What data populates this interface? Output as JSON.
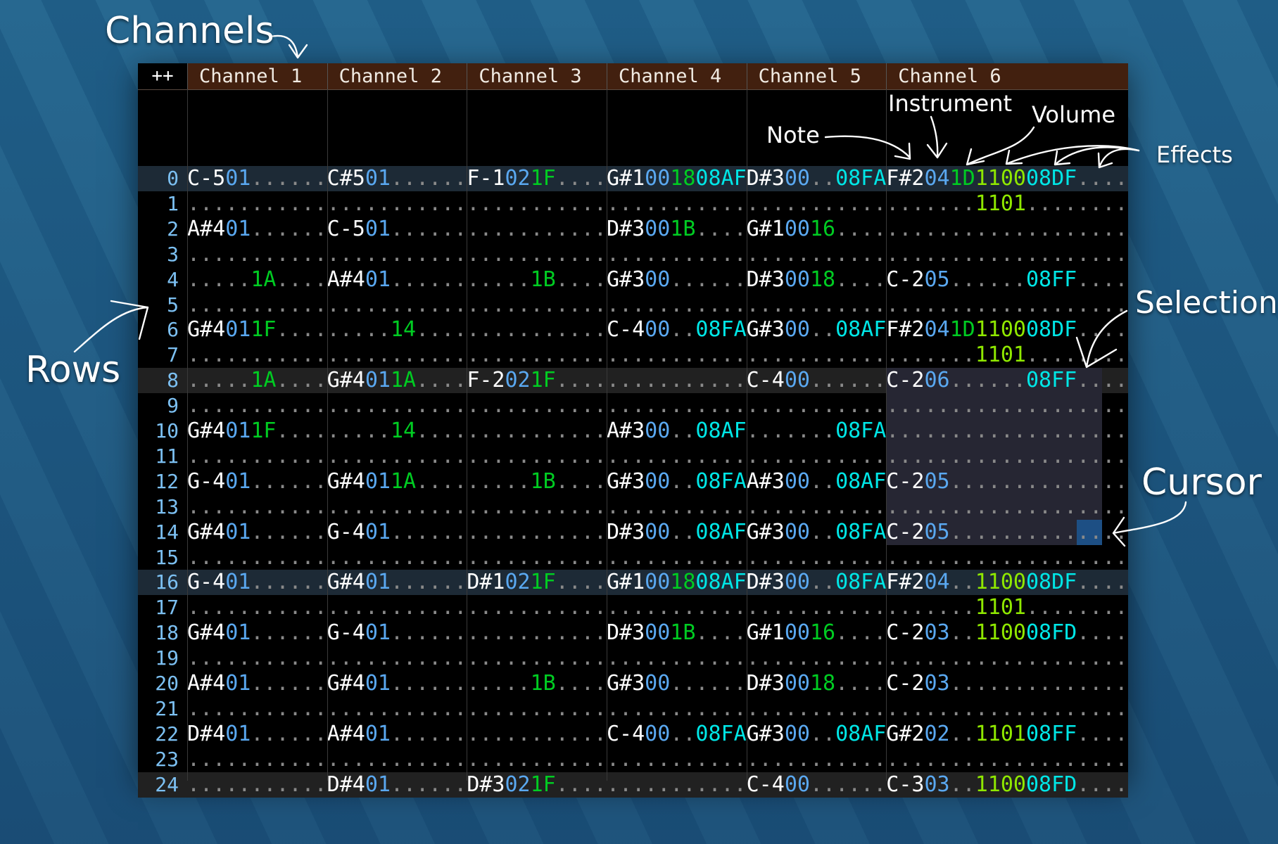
{
  "header": {
    "corner_label": "++",
    "channels": [
      "Channel 1",
      "Channel 2",
      "Channel 3",
      "Channel 4",
      "Channel 5",
      "Channel 6"
    ]
  },
  "channel_effect_columns": [
    1,
    1,
    1,
    1,
    1,
    3
  ],
  "colors": {
    "note": "#ffffff",
    "instrument": "#5aa8f0",
    "volume": "#00cc22",
    "effect_08": "#00e6e6",
    "effect_11": "#8fe800",
    "row_number": "#7cc0f2",
    "header_bg": "#42200f",
    "selection": "#262633",
    "cursor": "#1d4f84"
  },
  "annotations": {
    "channels": "Channels",
    "rows": "Rows",
    "note": "Note",
    "instrument": "Instrument",
    "volume": "Volume",
    "effects": "Effects",
    "selection": "Selection",
    "cursor": "Cursor"
  },
  "selection": {
    "channel": 6,
    "row_start": 8,
    "row_end": 14,
    "end_field": "fx3",
    "end_digit": 1
  },
  "cursor": {
    "channel": 6,
    "row": 14,
    "field": "fx3",
    "digits": [
      0,
      1
    ]
  },
  "rows": [
    {
      "n": "0",
      "cells": [
        [
          "C-5",
          "01",
          "",
          ""
        ],
        [
          "C#5",
          "01",
          "",
          ""
        ],
        [
          "F-1",
          "02",
          "1F",
          ""
        ],
        [
          "G#1",
          "00",
          "18",
          "08AF"
        ],
        [
          "D#3",
          "00",
          "",
          "08FA"
        ],
        [
          "F#2",
          "04",
          "1D",
          "1100",
          "08DF",
          ""
        ]
      ]
    },
    {
      "n": "1",
      "cells": [
        [
          "",
          "",
          "",
          ""
        ],
        [
          "",
          "",
          "",
          ""
        ],
        [
          "",
          "",
          "",
          ""
        ],
        [
          "",
          "",
          "",
          ""
        ],
        [
          "",
          "",
          "",
          ""
        ],
        [
          "",
          "",
          "",
          "1101",
          "",
          ""
        ]
      ]
    },
    {
      "n": "2",
      "cells": [
        [
          "A#4",
          "01",
          "",
          ""
        ],
        [
          "C-5",
          "01",
          "",
          ""
        ],
        [
          "",
          "",
          "",
          ""
        ],
        [
          "D#3",
          "00",
          "1B",
          ""
        ],
        [
          "G#1",
          "00",
          "16",
          ""
        ],
        [
          "",
          "",
          "",
          "",
          "",
          ""
        ]
      ]
    },
    {
      "n": "3",
      "cells": [
        [
          "",
          "",
          "",
          ""
        ],
        [
          "",
          "",
          "",
          ""
        ],
        [
          "",
          "",
          "",
          ""
        ],
        [
          "",
          "",
          "",
          ""
        ],
        [
          "",
          "",
          "",
          ""
        ],
        [
          "",
          "",
          "",
          "",
          "",
          ""
        ]
      ]
    },
    {
      "n": "4",
      "cells": [
        [
          "",
          "",
          "1A",
          ""
        ],
        [
          "A#4",
          "01",
          "",
          ""
        ],
        [
          "",
          "",
          "1B",
          ""
        ],
        [
          "G#3",
          "00",
          "",
          ""
        ],
        [
          "D#3",
          "00",
          "18",
          ""
        ],
        [
          "C-2",
          "05",
          "",
          "",
          "08FF",
          ""
        ]
      ]
    },
    {
      "n": "5",
      "cells": [
        [
          "",
          "",
          "",
          ""
        ],
        [
          "",
          "",
          "",
          ""
        ],
        [
          "",
          "",
          "",
          ""
        ],
        [
          "",
          "",
          "",
          ""
        ],
        [
          "",
          "",
          "",
          ""
        ],
        [
          "",
          "",
          "",
          "",
          "",
          ""
        ]
      ]
    },
    {
      "n": "6",
      "cells": [
        [
          "G#4",
          "01",
          "1F",
          ""
        ],
        [
          "",
          "",
          "14",
          ""
        ],
        [
          "",
          "",
          "",
          ""
        ],
        [
          "C-4",
          "00",
          "",
          "08FA"
        ],
        [
          "G#3",
          "00",
          "",
          "08AF"
        ],
        [
          "F#2",
          "04",
          "1D",
          "1100",
          "08DF",
          ""
        ]
      ]
    },
    {
      "n": "7",
      "cells": [
        [
          "",
          "",
          "",
          ""
        ],
        [
          "",
          "",
          "",
          ""
        ],
        [
          "",
          "",
          "",
          ""
        ],
        [
          "",
          "",
          "",
          ""
        ],
        [
          "",
          "",
          "",
          ""
        ],
        [
          "",
          "",
          "",
          "1101",
          "",
          ""
        ]
      ]
    },
    {
      "n": "8",
      "cells": [
        [
          "",
          "",
          "1A",
          ""
        ],
        [
          "G#4",
          "01",
          "1A",
          ""
        ],
        [
          "F-2",
          "02",
          "1F",
          ""
        ],
        [
          "",
          "",
          "",
          ""
        ],
        [
          "C-4",
          "00",
          "",
          ""
        ],
        [
          "C-2",
          "06",
          "",
          "",
          "08FF",
          ""
        ]
      ]
    },
    {
      "n": "9",
      "cells": [
        [
          "",
          "",
          "",
          ""
        ],
        [
          "",
          "",
          "",
          ""
        ],
        [
          "",
          "",
          "",
          ""
        ],
        [
          "",
          "",
          "",
          ""
        ],
        [
          "",
          "",
          "",
          ""
        ],
        [
          "",
          "",
          "",
          "",
          "",
          ""
        ]
      ]
    },
    {
      "n": "10",
      "cells": [
        [
          "G#4",
          "01",
          "1F",
          ""
        ],
        [
          "",
          "",
          "14",
          ""
        ],
        [
          "",
          "",
          "",
          ""
        ],
        [
          "A#3",
          "00",
          "",
          "08AF"
        ],
        [
          "",
          "",
          "",
          "08FA"
        ],
        [
          "",
          "",
          "",
          "",
          "",
          ""
        ]
      ]
    },
    {
      "n": "11",
      "cells": [
        [
          "",
          "",
          "",
          ""
        ],
        [
          "",
          "",
          "",
          ""
        ],
        [
          "",
          "",
          "",
          ""
        ],
        [
          "",
          "",
          "",
          ""
        ],
        [
          "",
          "",
          "",
          ""
        ],
        [
          "",
          "",
          "",
          "",
          "",
          ""
        ]
      ]
    },
    {
      "n": "12",
      "cells": [
        [
          "G-4",
          "01",
          "",
          ""
        ],
        [
          "G#4",
          "01",
          "1A",
          ""
        ],
        [
          "",
          "",
          "1B",
          ""
        ],
        [
          "G#3",
          "00",
          "",
          "08FA"
        ],
        [
          "A#3",
          "00",
          "",
          "08AF"
        ],
        [
          "C-2",
          "05",
          "",
          "",
          "",
          ""
        ]
      ]
    },
    {
      "n": "13",
      "cells": [
        [
          "",
          "",
          "",
          ""
        ],
        [
          "",
          "",
          "",
          ""
        ],
        [
          "",
          "",
          "",
          ""
        ],
        [
          "",
          "",
          "",
          ""
        ],
        [
          "",
          "",
          "",
          ""
        ],
        [
          "",
          "",
          "",
          "",
          "",
          ""
        ]
      ]
    },
    {
      "n": "14",
      "cells": [
        [
          "G#4",
          "01",
          "",
          ""
        ],
        [
          "G-4",
          "01",
          "",
          ""
        ],
        [
          "",
          "",
          "",
          ""
        ],
        [
          "D#3",
          "00",
          "",
          "08AF"
        ],
        [
          "G#3",
          "00",
          "",
          "08FA"
        ],
        [
          "C-2",
          "05",
          "",
          "",
          "",
          ""
        ]
      ]
    },
    {
      "n": "15",
      "cells": [
        [
          "",
          "",
          "",
          ""
        ],
        [
          "",
          "",
          "",
          ""
        ],
        [
          "",
          "",
          "",
          ""
        ],
        [
          "",
          "",
          "",
          ""
        ],
        [
          "",
          "",
          "",
          ""
        ],
        [
          "",
          "",
          "",
          "",
          "",
          ""
        ]
      ]
    },
    {
      "n": "16",
      "cells": [
        [
          "G-4",
          "01",
          "",
          ""
        ],
        [
          "G#4",
          "01",
          "",
          ""
        ],
        [
          "D#1",
          "02",
          "1F",
          ""
        ],
        [
          "G#1",
          "00",
          "18",
          "08AF"
        ],
        [
          "D#3",
          "00",
          "",
          "08FA"
        ],
        [
          "F#2",
          "04",
          "",
          "1100",
          "08DF",
          ""
        ]
      ]
    },
    {
      "n": "17",
      "cells": [
        [
          "",
          "",
          "",
          ""
        ],
        [
          "",
          "",
          "",
          ""
        ],
        [
          "",
          "",
          "",
          ""
        ],
        [
          "",
          "",
          "",
          ""
        ],
        [
          "",
          "",
          "",
          ""
        ],
        [
          "",
          "",
          "",
          "1101",
          "",
          ""
        ]
      ]
    },
    {
      "n": "18",
      "cells": [
        [
          "G#4",
          "01",
          "",
          ""
        ],
        [
          "G-4",
          "01",
          "",
          ""
        ],
        [
          "",
          "",
          "",
          ""
        ],
        [
          "D#3",
          "00",
          "1B",
          ""
        ],
        [
          "G#1",
          "00",
          "16",
          ""
        ],
        [
          "C-2",
          "03",
          "",
          "1100",
          "08FD",
          ""
        ]
      ]
    },
    {
      "n": "19",
      "cells": [
        [
          "",
          "",
          "",
          ""
        ],
        [
          "",
          "",
          "",
          ""
        ],
        [
          "",
          "",
          "",
          ""
        ],
        [
          "",
          "",
          "",
          ""
        ],
        [
          "",
          "",
          "",
          ""
        ],
        [
          "",
          "",
          "",
          "",
          "",
          ""
        ]
      ]
    },
    {
      "n": "20",
      "cells": [
        [
          "A#4",
          "01",
          "",
          ""
        ],
        [
          "G#4",
          "01",
          "",
          ""
        ],
        [
          "",
          "",
          "1B",
          ""
        ],
        [
          "G#3",
          "00",
          "",
          ""
        ],
        [
          "D#3",
          "00",
          "18",
          ""
        ],
        [
          "C-2",
          "03",
          "",
          "",
          "",
          ""
        ]
      ]
    },
    {
      "n": "21",
      "cells": [
        [
          "",
          "",
          "",
          ""
        ],
        [
          "",
          "",
          "",
          ""
        ],
        [
          "",
          "",
          "",
          ""
        ],
        [
          "",
          "",
          "",
          ""
        ],
        [
          "",
          "",
          "",
          ""
        ],
        [
          "",
          "",
          "",
          "",
          "",
          ""
        ]
      ]
    },
    {
      "n": "22",
      "cells": [
        [
          "D#4",
          "01",
          "",
          ""
        ],
        [
          "A#4",
          "01",
          "",
          ""
        ],
        [
          "",
          "",
          "",
          ""
        ],
        [
          "C-4",
          "00",
          "",
          "08FA"
        ],
        [
          "G#3",
          "00",
          "",
          "08AF"
        ],
        [
          "G#2",
          "02",
          "",
          "1101",
          "08FF",
          ""
        ]
      ]
    },
    {
      "n": "23",
      "cells": [
        [
          "",
          "",
          "",
          ""
        ],
        [
          "",
          "",
          "",
          ""
        ],
        [
          "",
          "",
          "",
          ""
        ],
        [
          "",
          "",
          "",
          ""
        ],
        [
          "",
          "",
          "",
          ""
        ],
        [
          "",
          "",
          "",
          "",
          "",
          ""
        ]
      ]
    },
    {
      "n": "24",
      "cells": [
        [
          "",
          "",
          "",
          ""
        ],
        [
          "D#4",
          "01",
          "",
          ""
        ],
        [
          "D#3",
          "02",
          "1F",
          ""
        ],
        [
          "",
          "",
          "",
          ""
        ],
        [
          "C-4",
          "00",
          "",
          ""
        ],
        [
          "C-3",
          "03",
          "",
          "1100",
          "08FD",
          ""
        ]
      ]
    }
  ]
}
